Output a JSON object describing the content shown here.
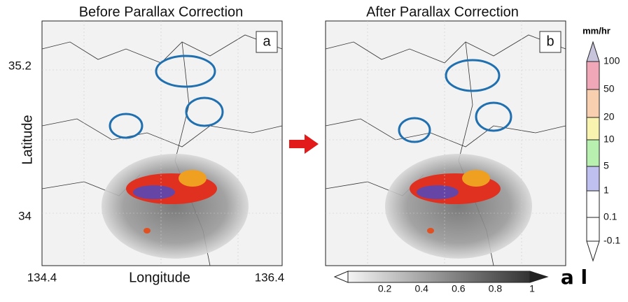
{
  "panels": [
    {
      "title": "Before Parallax Correction",
      "label": "a"
    },
    {
      "title": "After Parallax Correction",
      "label": "b"
    }
  ],
  "axes": {
    "y_label": "Latitude",
    "x_label": "Longitude",
    "y_ticks": [
      35.2,
      34
    ],
    "x_ticks": [
      134.4,
      136.4
    ]
  },
  "rain_colorbar": {
    "unit": "mm/hr",
    "ticks": [
      100,
      50,
      20,
      10,
      5,
      1,
      0.1,
      -0.1
    ]
  },
  "albedo_colorbar": {
    "label": "a l",
    "ticks": [
      0.2,
      0.4,
      0.6,
      0.8,
      1
    ]
  }
}
